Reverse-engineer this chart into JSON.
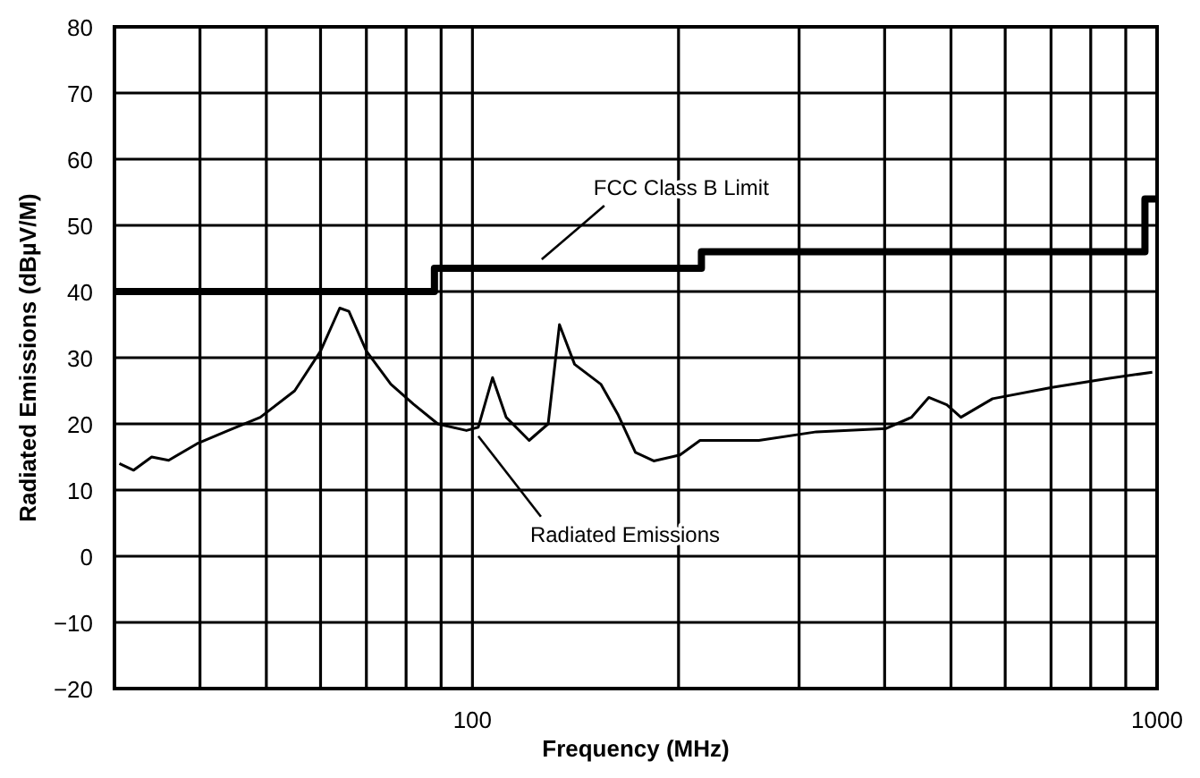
{
  "chart_data": {
    "type": "line",
    "xlabel": "Frequency (MHz)",
    "ylabel": "Radiated Emissions (dBµV/M)",
    "log": "x",
    "grid": true,
    "legend": false,
    "marker": "none",
    "xlim": [
      30,
      1000
    ],
    "xticks": [
      {
        "value": 40,
        "label": null
      },
      {
        "value": 50,
        "label": null
      },
      {
        "value": 60,
        "label": null
      },
      {
        "value": 70,
        "label": null
      },
      {
        "value": 80,
        "label": null
      },
      {
        "value": 90,
        "label": null
      },
      100,
      {
        "value": 200,
        "label": null
      },
      {
        "value": 300,
        "label": null
      },
      {
        "value": 400,
        "label": null
      },
      {
        "value": 500,
        "label": null
      },
      {
        "value": 600,
        "label": null
      },
      {
        "value": 700,
        "label": null
      },
      {
        "value": 800,
        "label": null
      },
      {
        "value": 900,
        "label": null
      },
      1000
    ],
    "ylim": [
      -20,
      80
    ],
    "yticks": [
      {
        "value": -20,
        "label": "−20"
      },
      {
        "value": -10,
        "label": "−10"
      },
      0,
      10,
      20,
      30,
      40,
      50,
      60,
      70,
      80
    ],
    "series": [
      {
        "name": "FCC Class B Limit",
        "type": "step",
        "color": "#000000",
        "x": [
          30,
          88,
          216,
          960,
          1000
        ],
        "values": [
          40,
          43.5,
          46,
          54,
          54
        ]
      },
      {
        "name": "Radiated Emissions",
        "type": "line",
        "color": "#000000",
        "x": [
          30.5,
          32,
          34,
          36,
          39.6,
          44,
          49,
          55,
          60,
          64,
          66,
          70,
          76,
          82,
          89,
          98,
          102,
          107,
          112,
          121,
          129,
          134,
          141,
          154,
          163,
          173,
          184,
          201,
          215,
          262,
          318,
          402,
          438,
          464,
          493,
          517,
          575,
          702,
          852,
          984
        ],
        "values": [
          14,
          13,
          15,
          14.5,
          17,
          19,
          21,
          25,
          31,
          37.5,
          37,
          31,
          26,
          23,
          20,
          19,
          19.5,
          27,
          21,
          17.5,
          20,
          35,
          29,
          26,
          21.5,
          15.7,
          14.4,
          15.3,
          17.5,
          17.5,
          18.8,
          19.3,
          21,
          24,
          22.9,
          21,
          23.8,
          25.5,
          26.9,
          27.8
        ]
      }
    ]
  }
}
